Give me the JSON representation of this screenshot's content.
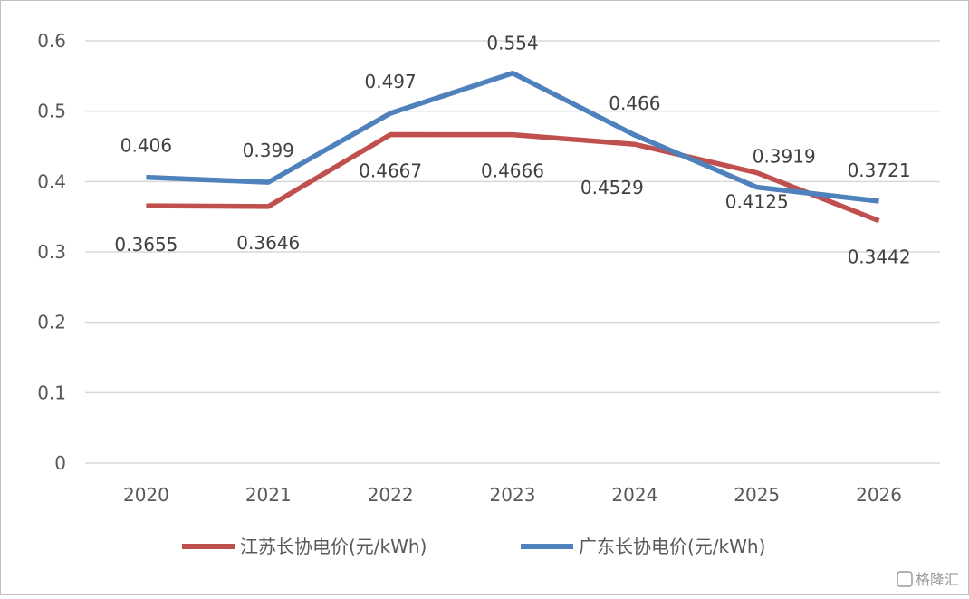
{
  "chart_data": {
    "type": "line",
    "title": "",
    "xlabel": "",
    "ylabel": "",
    "categories": [
      "2020",
      "2021",
      "2022",
      "2023",
      "2024",
      "2025",
      "2026"
    ],
    "ylim": [
      0,
      0.6
    ],
    "yticks": [
      "0",
      "0.1",
      "0.2",
      "0.3",
      "0.4",
      "0.5",
      "0.6"
    ],
    "grid": true,
    "legend_position": "bottom",
    "series": [
      {
        "name": "江苏长协电价(元/kWh)",
        "color": "#c0504d",
        "values": [
          0.3655,
          0.3646,
          0.4667,
          0.4666,
          0.4529,
          0.4125,
          0.3442
        ],
        "labels": [
          "0.3655",
          "0.3646",
          "0.4667",
          "0.4666",
          "0.4529",
          "0.4125",
          "0.3442"
        ]
      },
      {
        "name": "广东长协电价(元/kWh)",
        "color": "#4f81bd",
        "values": [
          0.406,
          0.399,
          0.497,
          0.554,
          0.466,
          0.3919,
          0.3721
        ],
        "labels": [
          "0.406",
          "0.399",
          "0.497",
          "0.554",
          "0.466",
          "0.3919",
          "0.3721"
        ]
      }
    ]
  },
  "watermark": {
    "icon": "gelonghui-logo-icon",
    "text": "格隆汇"
  }
}
